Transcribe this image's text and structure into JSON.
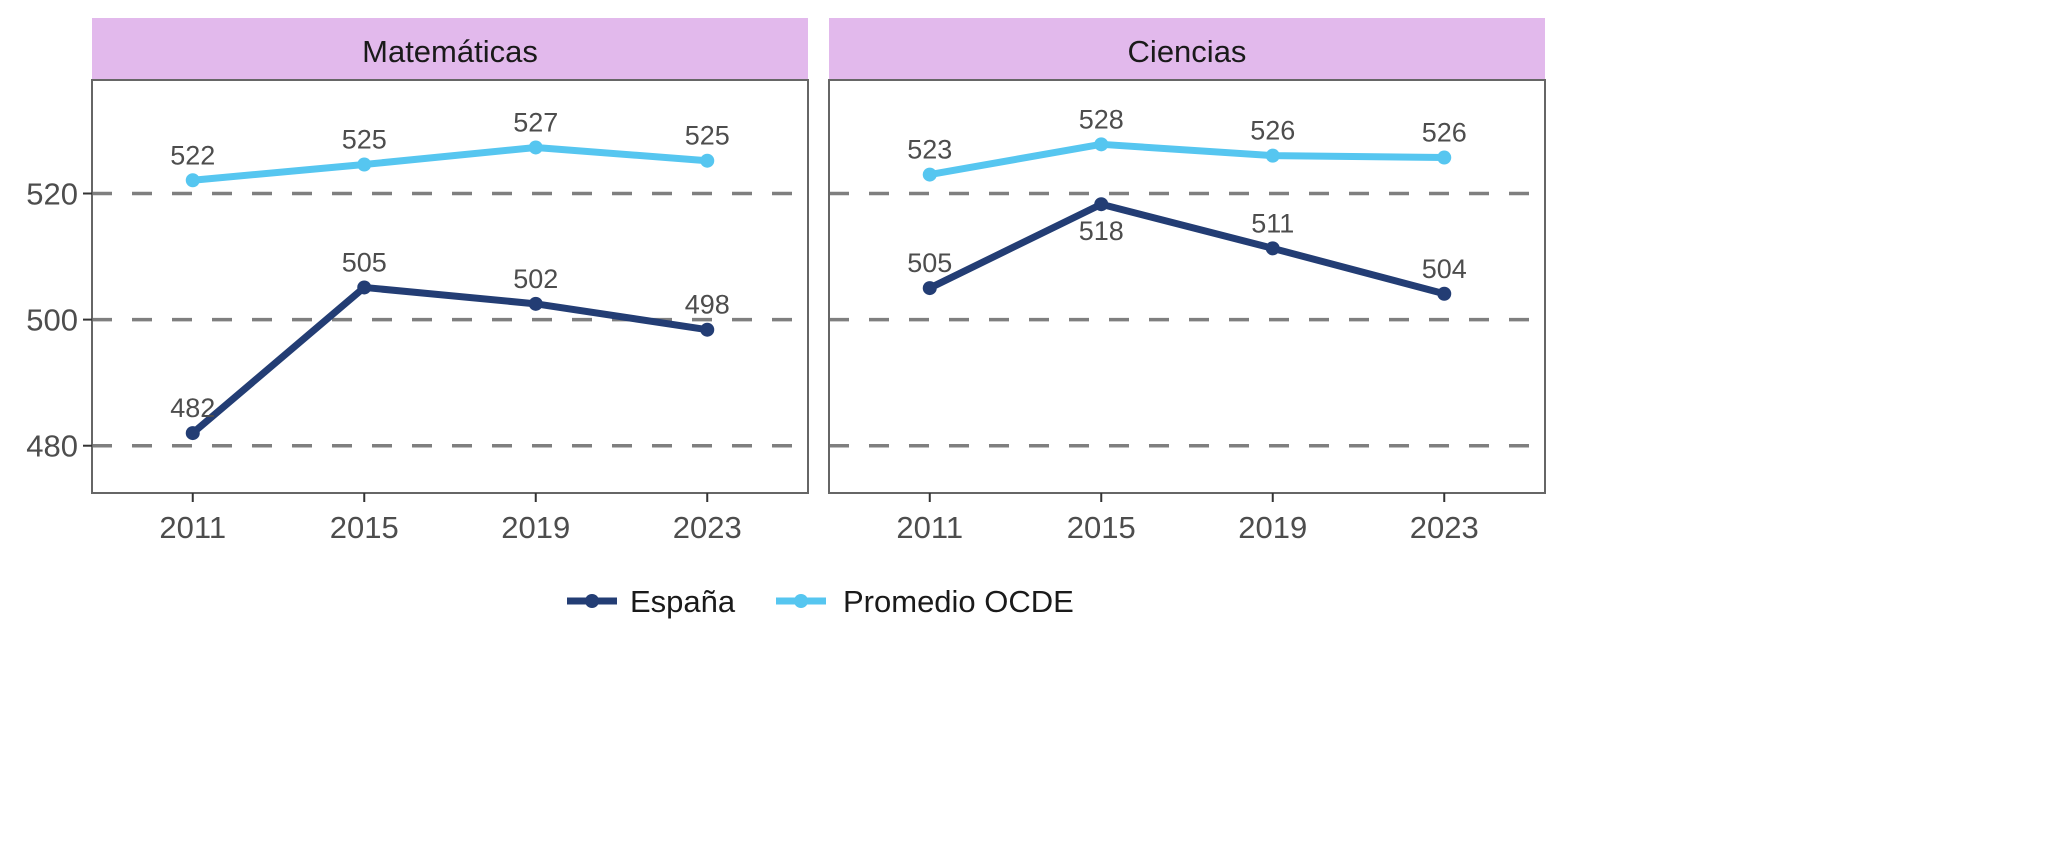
{
  "chart_data": {
    "type": "line",
    "x": [
      2011,
      2015,
      2019,
      2023
    ],
    "xlim": [
      2008.65,
      2025.35
    ],
    "ylim": [
      472.5,
      538
    ],
    "yticks": [
      480,
      500,
      520
    ],
    "grid": "horizontal dashed at y ticks",
    "legend_placement": "bottom",
    "colors": {
      "espana": "#233d74",
      "ocde": "#56c6f0",
      "strip": "#e2b9ec",
      "grid": "#7f7f7f",
      "border": "#666666"
    },
    "legend": [
      {
        "key": "espana",
        "label": "España"
      },
      {
        "key": "ocde",
        "label": "Promedio OCDE"
      }
    ],
    "panels": [
      {
        "title": "Matemáticas",
        "series": [
          {
            "key": "espana",
            "name": "España",
            "values": [
              482,
              505.1,
              502.5,
              498.4
            ],
            "labels": [
              "482",
              "505",
              "502",
              "498"
            ],
            "label_pos": [
              "above",
              "above",
              "above",
              "above"
            ]
          },
          {
            "key": "ocde",
            "name": "Promedio OCDE",
            "values": [
              522.1,
              524.6,
              527.3,
              525.2
            ],
            "labels": [
              "522",
              "525",
              "527",
              "525"
            ],
            "label_pos": [
              "above",
              "above",
              "above",
              "above"
            ]
          }
        ]
      },
      {
        "title": "Ciencias",
        "series": [
          {
            "key": "espana",
            "name": "España",
            "values": [
              505,
              518.3,
              511.3,
              504.1
            ],
            "labels": [
              "505",
              "518",
              "511",
              "504"
            ],
            "label_pos": [
              "above",
              "below",
              "above",
              "above"
            ]
          },
          {
            "key": "ocde",
            "name": "Promedio OCDE",
            "values": [
              523,
              527.8,
              526,
              525.7
            ],
            "labels": [
              "523",
              "528",
              "526",
              "526"
            ],
            "label_pos": [
              "above",
              "above",
              "above",
              "above"
            ]
          }
        ]
      }
    ]
  }
}
